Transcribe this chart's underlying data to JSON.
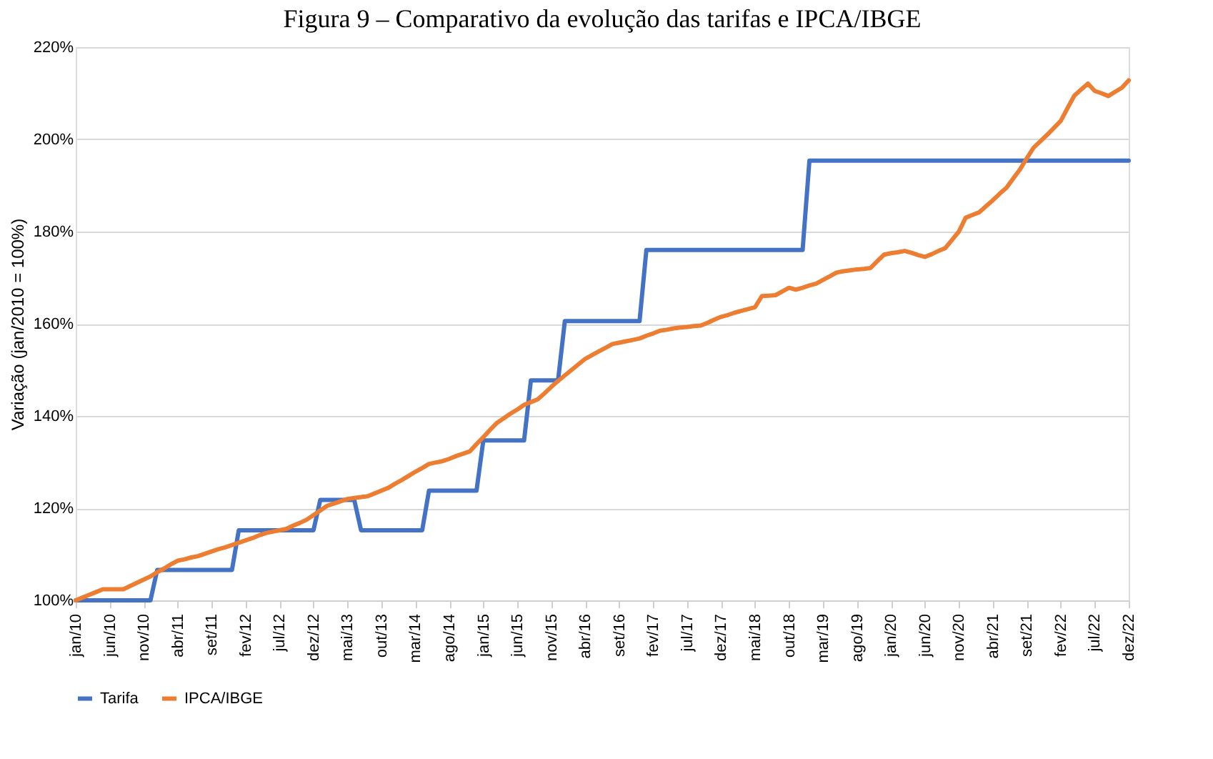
{
  "chart_data": {
    "type": "line",
    "title": "Figura 9 – Comparativo da evolução das tarifas e IPCA/IBGE",
    "ylabel": "Variação (jan/2010 = 100%)",
    "categories": [
      "jan/10",
      null,
      null,
      null,
      null,
      "jun/10",
      null,
      null,
      null,
      null,
      "nov/10",
      null,
      null,
      null,
      null,
      "abr/11",
      null,
      null,
      null,
      null,
      "set/11",
      null,
      null,
      null,
      null,
      "fev/12",
      null,
      null,
      null,
      null,
      "jul/12",
      null,
      null,
      null,
      null,
      "dez/12",
      null,
      null,
      null,
      null,
      "mai/13",
      null,
      null,
      null,
      null,
      "out/13",
      null,
      null,
      null,
      null,
      "mar/14",
      null,
      null,
      null,
      null,
      "ago/14",
      null,
      null,
      null,
      null,
      "jan/15",
      null,
      null,
      null,
      null,
      "jun/15",
      null,
      null,
      null,
      null,
      "nov/15",
      null,
      null,
      null,
      null,
      "abr/16",
      null,
      null,
      null,
      null,
      "set/16",
      null,
      null,
      null,
      null,
      "fev/17",
      null,
      null,
      null,
      null,
      "jul/17",
      null,
      null,
      null,
      null,
      "dez/17",
      null,
      null,
      null,
      null,
      "mai/18",
      null,
      null,
      null,
      null,
      "out/18",
      null,
      null,
      null,
      null,
      "mar/19",
      null,
      null,
      null,
      null,
      "ago/19",
      null,
      null,
      null,
      null,
      "jan/20",
      null,
      null,
      null,
      null,
      "jun/20",
      null,
      null,
      null,
      null,
      "nov/20",
      null,
      null,
      null,
      null,
      "abr/21",
      null,
      null,
      null,
      null,
      "set/21",
      null,
      null,
      null,
      null,
      "fev/22",
      null,
      null,
      null,
      null,
      "jul/22",
      null,
      null,
      null,
      null,
      "dez/22"
    ],
    "series": [
      {
        "name": "Tarifa",
        "color": "#4472c4",
        "values": [
          100,
          100,
          100,
          100,
          100,
          100,
          100,
          100,
          100,
          100,
          100,
          100,
          106.6,
          106.6,
          106.6,
          106.6,
          106.6,
          106.6,
          106.6,
          106.6,
          106.6,
          106.6,
          106.6,
          106.6,
          115.2,
          115.2,
          115.2,
          115.2,
          115.2,
          115.2,
          115.2,
          115.2,
          115.2,
          115.2,
          115.2,
          115.2,
          121.8,
          121.8,
          121.8,
          121.8,
          121.8,
          121.8,
          115.2,
          115.2,
          115.2,
          115.2,
          115.2,
          115.2,
          115.2,
          115.2,
          115.2,
          115.2,
          123.8,
          123.8,
          123.8,
          123.8,
          123.8,
          123.8,
          123.8,
          123.8,
          134.7,
          134.7,
          134.7,
          134.7,
          134.7,
          134.7,
          134.7,
          147.7,
          147.7,
          147.7,
          147.7,
          147.7,
          160.6,
          160.6,
          160.6,
          160.6,
          160.6,
          160.6,
          160.6,
          160.6,
          160.6,
          160.6,
          160.6,
          160.6,
          176.0,
          176.0,
          176.0,
          176.0,
          176.0,
          176.0,
          176.0,
          176.0,
          176.0,
          176.0,
          176.0,
          176.0,
          176.0,
          176.0,
          176.0,
          176.0,
          176.0,
          176.0,
          176.0,
          176.0,
          176.0,
          176.0,
          176.0,
          176.0,
          195.4,
          195.4,
          195.4,
          195.4,
          195.4,
          195.4,
          195.4,
          195.4,
          195.4,
          195.4,
          195.4,
          195.4,
          195.4,
          195.4,
          195.4,
          195.4,
          195.4,
          195.4,
          195.4,
          195.4,
          195.4,
          195.4,
          195.4,
          195.4,
          195.4,
          195.4,
          195.4,
          195.4,
          195.4,
          195.4,
          195.4,
          195.4,
          195.4,
          195.4,
          195.4,
          195.4,
          195.4,
          195.4,
          195.4,
          195.4,
          195.4,
          195.4,
          195.4,
          195.4,
          195.4,
          195.4,
          195.4,
          195.4
        ]
      },
      {
        "name": "IPCA/IBGE",
        "color": "#ed7d31",
        "values": [
          100.0,
          100.6,
          101.2,
          101.8,
          102.4,
          102.4,
          102.4,
          102.4,
          103.1,
          103.8,
          104.5,
          105.2,
          106.1,
          106.9,
          107.8,
          108.6,
          108.9,
          109.3,
          109.6,
          110.1,
          110.6,
          111.1,
          111.5,
          112.0,
          112.5,
          113.0,
          113.5,
          114.1,
          114.6,
          114.9,
          115.2,
          115.5,
          116.2,
          116.8,
          117.5,
          118.5,
          119.5,
          120.5,
          121.0,
          121.5,
          122.0,
          122.2,
          122.4,
          122.6,
          123.2,
          123.8,
          124.4,
          125.3,
          126.1,
          127.0,
          127.9,
          128.7,
          129.6,
          129.9,
          130.2,
          130.7,
          131.3,
          131.8,
          132.3,
          133.9,
          135.4,
          137.0,
          138.5,
          139.5,
          140.5,
          141.4,
          142.4,
          143.0,
          143.6,
          144.9,
          146.3,
          147.6,
          148.8,
          150.0,
          151.2,
          152.4,
          153.2,
          154.0,
          154.8,
          155.6,
          155.9,
          156.2,
          156.5,
          156.8,
          157.4,
          157.9,
          158.5,
          158.7,
          159.0,
          159.2,
          159.3,
          159.5,
          159.6,
          160.2,
          160.9,
          161.5,
          161.9,
          162.4,
          162.8,
          163.2,
          163.6,
          166.0,
          166.1,
          166.2,
          167.0,
          167.8,
          167.4,
          167.8,
          168.3,
          168.7,
          169.5,
          170.3,
          171.1,
          171.4,
          171.6,
          171.8,
          171.9,
          172.1,
          173.6,
          175.0,
          175.3,
          175.5,
          175.8,
          175.4,
          174.9,
          174.5,
          175.1,
          175.8,
          176.4,
          178.2,
          180.0,
          183.0,
          183.6,
          184.2,
          185.5,
          186.8,
          188.2,
          189.5,
          191.5,
          193.5,
          195.9,
          198.2,
          199.6,
          201.0,
          202.5,
          204.0,
          206.8,
          209.5,
          210.8,
          212.1,
          210.5,
          210.0,
          209.4,
          210.3,
          211.2,
          212.8
        ]
      }
    ],
    "ylim": [
      100,
      220
    ],
    "yticks": [
      {
        "value": 100,
        "label": "100%"
      },
      {
        "value": 120,
        "label": "120%"
      },
      {
        "value": 140,
        "label": "140%"
      },
      {
        "value": 160,
        "label": "160%"
      },
      {
        "value": 180,
        "label": "180%"
      },
      {
        "value": 200,
        "label": "200%"
      },
      {
        "value": 220,
        "label": "220%"
      }
    ],
    "grid": "y",
    "legend": "bottom",
    "marker": "none",
    "line_style": "solid"
  }
}
